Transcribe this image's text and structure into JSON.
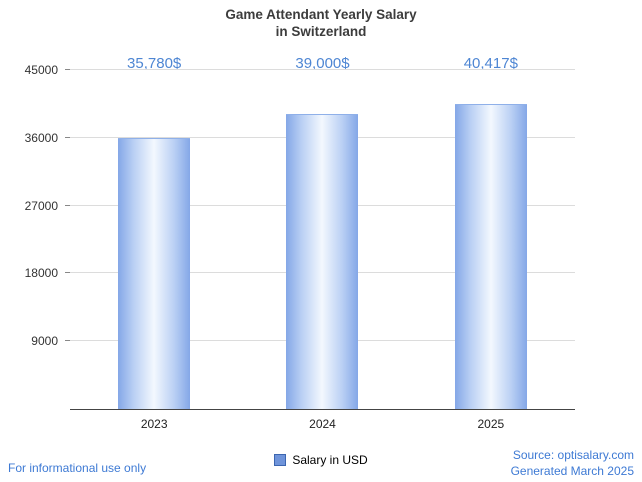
{
  "title": {
    "line1": "Game Attendant Yearly Salary",
    "line2": "in Switzerland"
  },
  "chart_data": {
    "type": "bar",
    "title": "Game Attendant Yearly Salary in Switzerland",
    "categories": [
      "2023",
      "2024",
      "2025"
    ],
    "values": [
      35780,
      39000,
      40417
    ],
    "value_labels": [
      "35,780$",
      "39,000$",
      "40,417$"
    ],
    "ylim": [
      0,
      45000
    ],
    "yticks": [
      9000,
      18000,
      27000,
      36000,
      45000
    ],
    "grid": true,
    "legend": "Salary in USD",
    "legend_position": "bottom",
    "bar_color_edge": "#84a7e7",
    "bar_color_center": "#f3f8fe",
    "value_label_color": "#4e86d3"
  },
  "legend": {
    "label": "Salary in USD"
  },
  "footer": {
    "left": "For informational use only",
    "source": "Source: optisalary.com",
    "generated": "Generated March 2025"
  }
}
